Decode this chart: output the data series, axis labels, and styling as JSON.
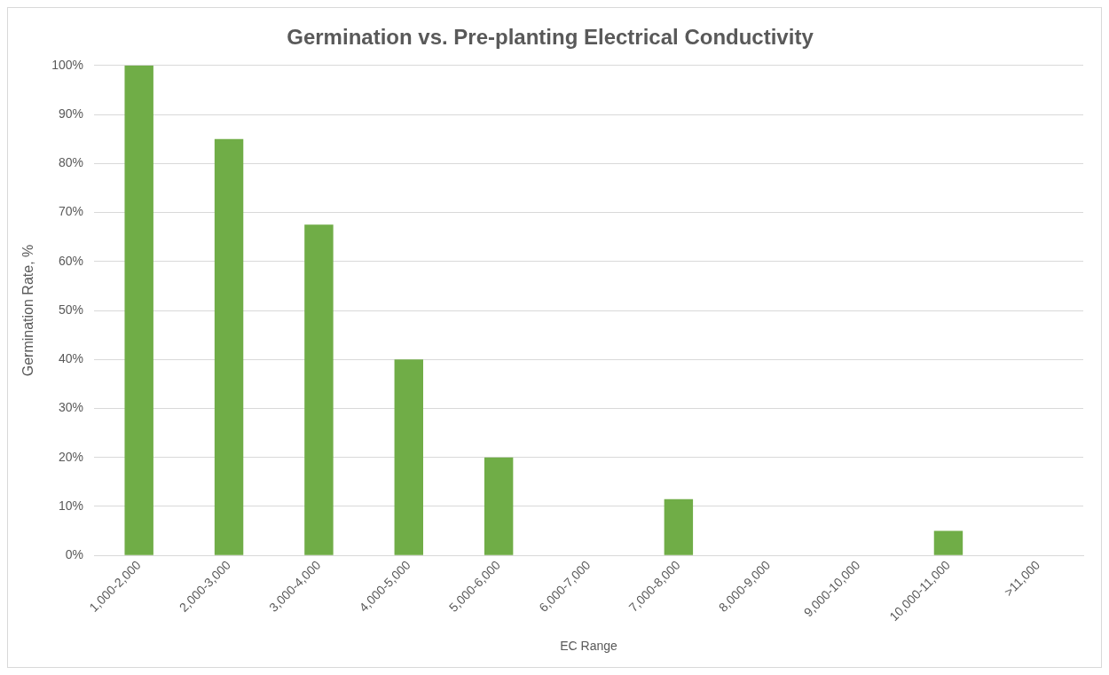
{
  "chart_data": {
    "type": "bar",
    "title": "Germination vs. Pre-planting Electrical Conductivity",
    "xlabel": "EC Range",
    "ylabel": "Germination Rate, %",
    "categories": [
      "1,000-2,000",
      "2,000-3,000",
      "3,000-4,000",
      "4,000-5,000",
      "5,000-6,000",
      "6,000-7,000",
      "7,000-8,000",
      "8,000-9,000",
      "9,000-10,000",
      "10,000-11,000",
      ">11,000"
    ],
    "values": [
      100,
      85,
      67.5,
      40,
      20,
      0,
      11.5,
      0,
      0,
      5,
      0
    ],
    "color": "#70ad47",
    "ylim": [
      0,
      100
    ],
    "yticks": [
      {
        "value": 0,
        "label": "0%"
      },
      {
        "value": 10,
        "label": "10%"
      },
      {
        "value": 20,
        "label": "20%"
      },
      {
        "value": 30,
        "label": "30%"
      },
      {
        "value": 40,
        "label": "40%"
      },
      {
        "value": 50,
        "label": "50%"
      },
      {
        "value": 60,
        "label": "60%"
      },
      {
        "value": 70,
        "label": "70%"
      },
      {
        "value": 80,
        "label": "80%"
      },
      {
        "value": 90,
        "label": "90%"
      },
      {
        "value": 100,
        "label": "100%"
      }
    ],
    "grid": "y",
    "legend": false
  }
}
